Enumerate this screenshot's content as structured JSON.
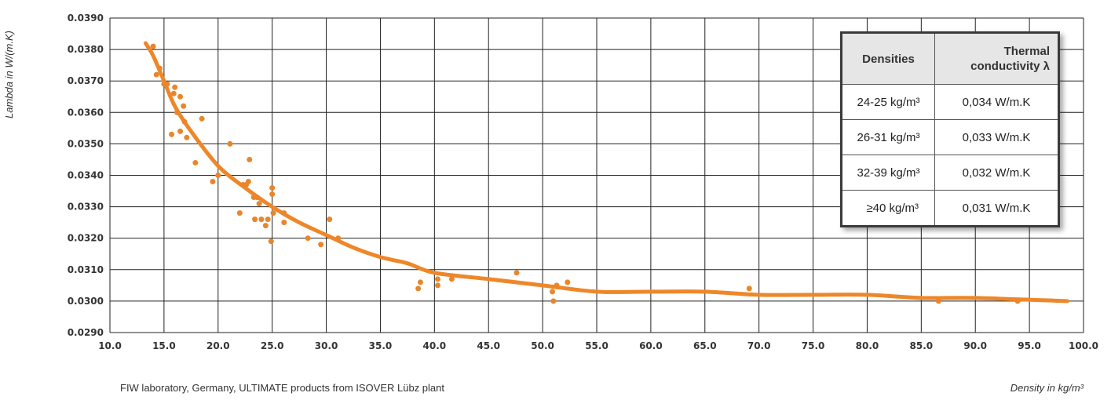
{
  "chart_data": {
    "type": "scatter",
    "ylabel": "Lambda in W/(m.K)",
    "xlabel": "Density in kg/m³",
    "source_note": "FIW laboratory, Germany, ULTIMATE products from ISOVER Lübz plant",
    "xlim": [
      10,
      100
    ],
    "ylim": [
      0.029,
      0.039
    ],
    "x_ticks": [
      "10.0",
      "15.0",
      "20.0",
      "25.0",
      "30.0",
      "35.0",
      "40.0",
      "45.0",
      "50.0",
      "55.0",
      "60.0",
      "65.0",
      "70.0",
      "75.0",
      "80.0",
      "85.0",
      "90.0",
      "95.0",
      "100.0"
    ],
    "y_ticks": [
      "0.0290",
      "0.0300",
      "0.0310",
      "0.0320",
      "0.0330",
      "0.0340",
      "0.0350",
      "0.0360",
      "0.0370",
      "0.0380",
      "0.0390"
    ],
    "grid": true,
    "colors": {
      "points": "#e9862a",
      "trend": "#ee8729",
      "grid": "#222222"
    },
    "series": [
      {
        "points": [
          [
            14.0,
            0.0381
          ],
          [
            14.3,
            0.0372
          ],
          [
            14.6,
            0.0374
          ],
          [
            15.0,
            0.0369
          ],
          [
            15.3,
            0.0369
          ],
          [
            15.7,
            0.0353
          ],
          [
            15.9,
            0.0366
          ],
          [
            16.0,
            0.0368
          ],
          [
            16.2,
            0.036
          ],
          [
            16.5,
            0.0365
          ],
          [
            16.5,
            0.0354
          ],
          [
            16.8,
            0.0362
          ],
          [
            16.9,
            0.0357
          ],
          [
            17.1,
            0.0352
          ],
          [
            17.9,
            0.0344
          ],
          [
            18.5,
            0.0358
          ],
          [
            19.5,
            0.0338
          ],
          [
            20.0,
            0.034
          ],
          [
            21.1,
            0.035
          ],
          [
            22.0,
            0.0328
          ],
          [
            22.3,
            0.0337
          ],
          [
            22.6,
            0.0337
          ],
          [
            22.8,
            0.0338
          ],
          [
            22.9,
            0.0345
          ],
          [
            23.3,
            0.0333
          ],
          [
            23.4,
            0.0326
          ],
          [
            23.6,
            0.0333
          ],
          [
            23.8,
            0.0331
          ],
          [
            24.0,
            0.0326
          ],
          [
            24.4,
            0.0324
          ],
          [
            24.6,
            0.0326
          ],
          [
            24.9,
            0.0319
          ],
          [
            25.0,
            0.0336
          ],
          [
            25.0,
            0.0334
          ],
          [
            25.1,
            0.0328
          ],
          [
            26.1,
            0.0325
          ],
          [
            26.1,
            0.0328
          ],
          [
            28.3,
            0.032
          ],
          [
            29.5,
            0.0318
          ],
          [
            30.3,
            0.0326
          ],
          [
            31.1,
            0.032
          ],
          [
            38.5,
            0.0304
          ],
          [
            38.7,
            0.0306
          ],
          [
            40.3,
            0.0307
          ],
          [
            40.3,
            0.0305
          ],
          [
            41.6,
            0.0307
          ],
          [
            47.6,
            0.0309
          ],
          [
            50.9,
            0.0303
          ],
          [
            51.0,
            0.03
          ],
          [
            51.3,
            0.0305
          ],
          [
            52.3,
            0.0306
          ],
          [
            69.1,
            0.0304
          ],
          [
            86.6,
            0.03
          ],
          [
            93.9,
            0.03
          ]
        ]
      }
    ],
    "trend_line": [
      [
        13.3,
        0.0382
      ],
      [
        14.0,
        0.0378
      ],
      [
        15.0,
        0.037
      ],
      [
        16.0,
        0.0362
      ],
      [
        17.5,
        0.0354
      ],
      [
        20.0,
        0.0343
      ],
      [
        22.5,
        0.0336
      ],
      [
        25.0,
        0.033
      ],
      [
        27.5,
        0.0325
      ],
      [
        30.0,
        0.0321
      ],
      [
        32.5,
        0.0317
      ],
      [
        35.0,
        0.0314
      ],
      [
        37.5,
        0.0312
      ],
      [
        40.0,
        0.0309
      ],
      [
        45.0,
        0.0307
      ],
      [
        50.0,
        0.0305
      ],
      [
        55.0,
        0.0303
      ],
      [
        60.0,
        0.0303
      ],
      [
        65.0,
        0.0303
      ],
      [
        70.0,
        0.0302
      ],
      [
        75.0,
        0.0302
      ],
      [
        80.0,
        0.0302
      ],
      [
        85.0,
        0.0301
      ],
      [
        90.0,
        0.0301
      ],
      [
        98.5,
        0.03
      ]
    ],
    "table": {
      "headers": [
        "Densities",
        "Thermal conductivity λ"
      ],
      "rows": [
        [
          "24-25 kg/m³",
          "0,034 W/m.K"
        ],
        [
          "26-31 kg/m³",
          "0,033 W/m.K"
        ],
        [
          "32-39 kg/m³",
          "0,032 W/m.K"
        ],
        [
          "≥40 kg/m³",
          "0,031 W/m.K"
        ]
      ]
    }
  },
  "table_view": {
    "header_col1": "Densities",
    "header_col2_line1": "Thermal",
    "header_col2_line2": "conductivity λ",
    "r0c0": "24-25 kg/m³",
    "r0c1": "0,034 W/m.K",
    "r1c0": "26-31 kg/m³",
    "r1c1": "0,033 W/m.K",
    "r2c0": "32-39 kg/m³",
    "r2c1": "0,032 W/m.K",
    "r3c0": "≥40 kg/m³",
    "r3c1": "0,031 W/m.K"
  }
}
